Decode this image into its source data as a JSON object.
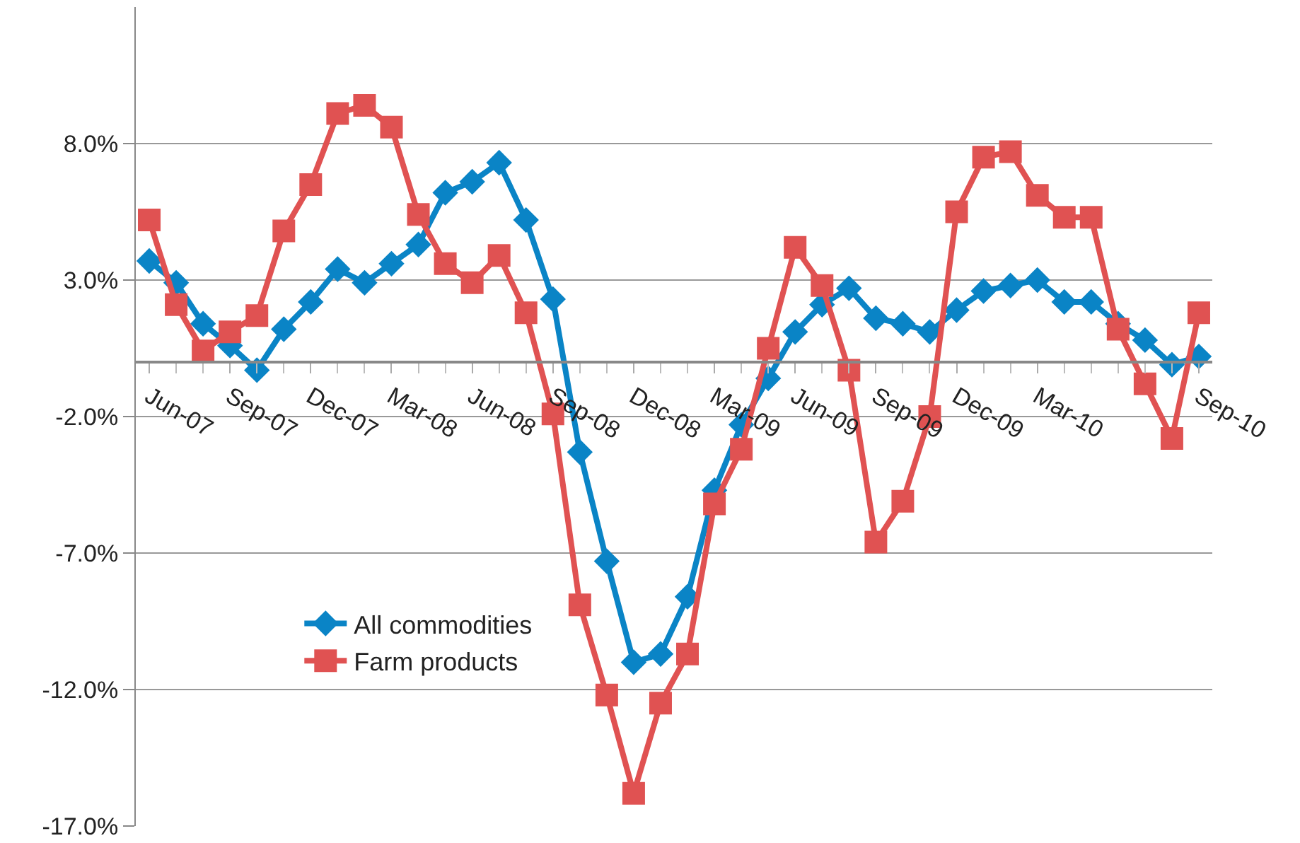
{
  "chart_data": {
    "type": "line",
    "categories": [
      "Jun-07",
      null,
      null,
      "Sep-07",
      null,
      null,
      "Dec-07",
      null,
      null,
      "Mar-08",
      null,
      null,
      "Jun-08",
      null,
      null,
      "Sep-08",
      null,
      null,
      "Dec-08",
      null,
      null,
      "Mar-09",
      null,
      null,
      "Jun-09",
      null,
      null,
      "Sep-09",
      null,
      null,
      "Dec-09",
      null,
      null,
      "Mar-10",
      null,
      null,
      null,
      null,
      null,
      "Sep-10"
    ],
    "series": [
      {
        "name": "All commodities",
        "color": "#0a84c6",
        "marker": "diamond",
        "values": [
          3.7,
          2.9,
          1.4,
          0.6,
          -0.3,
          1.2,
          2.2,
          3.4,
          2.9,
          3.6,
          4.3,
          6.2,
          6.6,
          7.3,
          5.2,
          2.3,
          -3.3,
          -7.3,
          -11.0,
          -10.7,
          -8.6,
          -4.7,
          -2.3,
          -0.6,
          1.1,
          2.1,
          2.7,
          1.6,
          1.4,
          1.1,
          1.9,
          2.6,
          2.8,
          3.0,
          2.2,
          2.2,
          1.4,
          0.8,
          -0.1,
          0.2
        ]
      },
      {
        "name": "Farm products",
        "color": "#e05252",
        "marker": "square",
        "values": [
          5.2,
          2.1,
          0.4,
          1.1,
          1.7,
          4.8,
          6.5,
          9.1,
          9.4,
          8.6,
          5.4,
          3.6,
          2.9,
          3.9,
          1.8,
          -1.9,
          -8.9,
          -12.2,
          -15.8,
          -12.5,
          -10.7,
          -5.2,
          -3.2,
          0.5,
          4.2,
          2.8,
          -0.3,
          -6.6,
          -5.1,
          -2.0,
          5.5,
          7.5,
          7.7,
          6.1,
          5.3,
          5.3,
          1.2,
          -0.8,
          -2.8,
          1.8
        ]
      }
    ],
    "ylim": [
      -17,
      13
    ],
    "yticks": [
      {
        "value": -17,
        "label": "-17.0%"
      },
      {
        "value": -12,
        "label": "-12.0%"
      },
      {
        "value": -7,
        "label": "-7.0%"
      },
      {
        "value": -2,
        "label": "-2.0%"
      },
      {
        "value": 3,
        "label": "3.0%"
      },
      {
        "value": 8,
        "label": "8.0%"
      }
    ],
    "grid": "y",
    "legend": "bottom left",
    "line_style": "solid"
  }
}
